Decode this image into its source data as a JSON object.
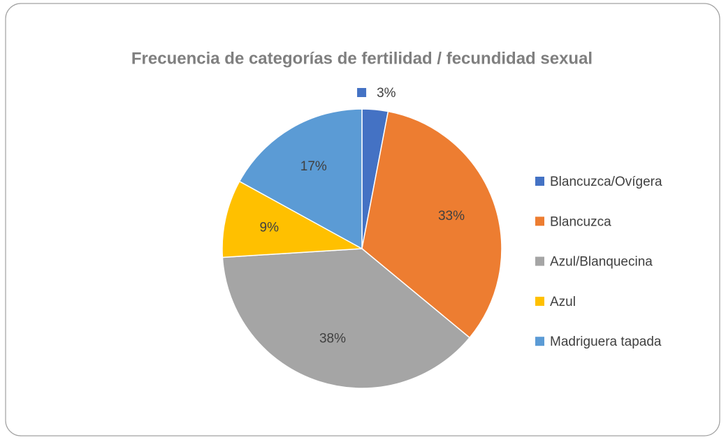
{
  "chart_data": {
    "type": "pie",
    "title": "Frecuencia de categorías de fertilidad / fecundidad sexual",
    "categories": [
      "Blancuzca/Ovígera",
      "Blancuzca",
      "Azul/Blanquecina",
      "Azul",
      "Madriguera tapada"
    ],
    "values": [
      3,
      33,
      38,
      9,
      17
    ],
    "value_labels": [
      "3%",
      "33%",
      "38%",
      "9%",
      "17%"
    ],
    "colors": [
      "#4472c4",
      "#ed7d31",
      "#a5a5a5",
      "#ffc000",
      "#5b9bd5"
    ],
    "legend": "right"
  }
}
